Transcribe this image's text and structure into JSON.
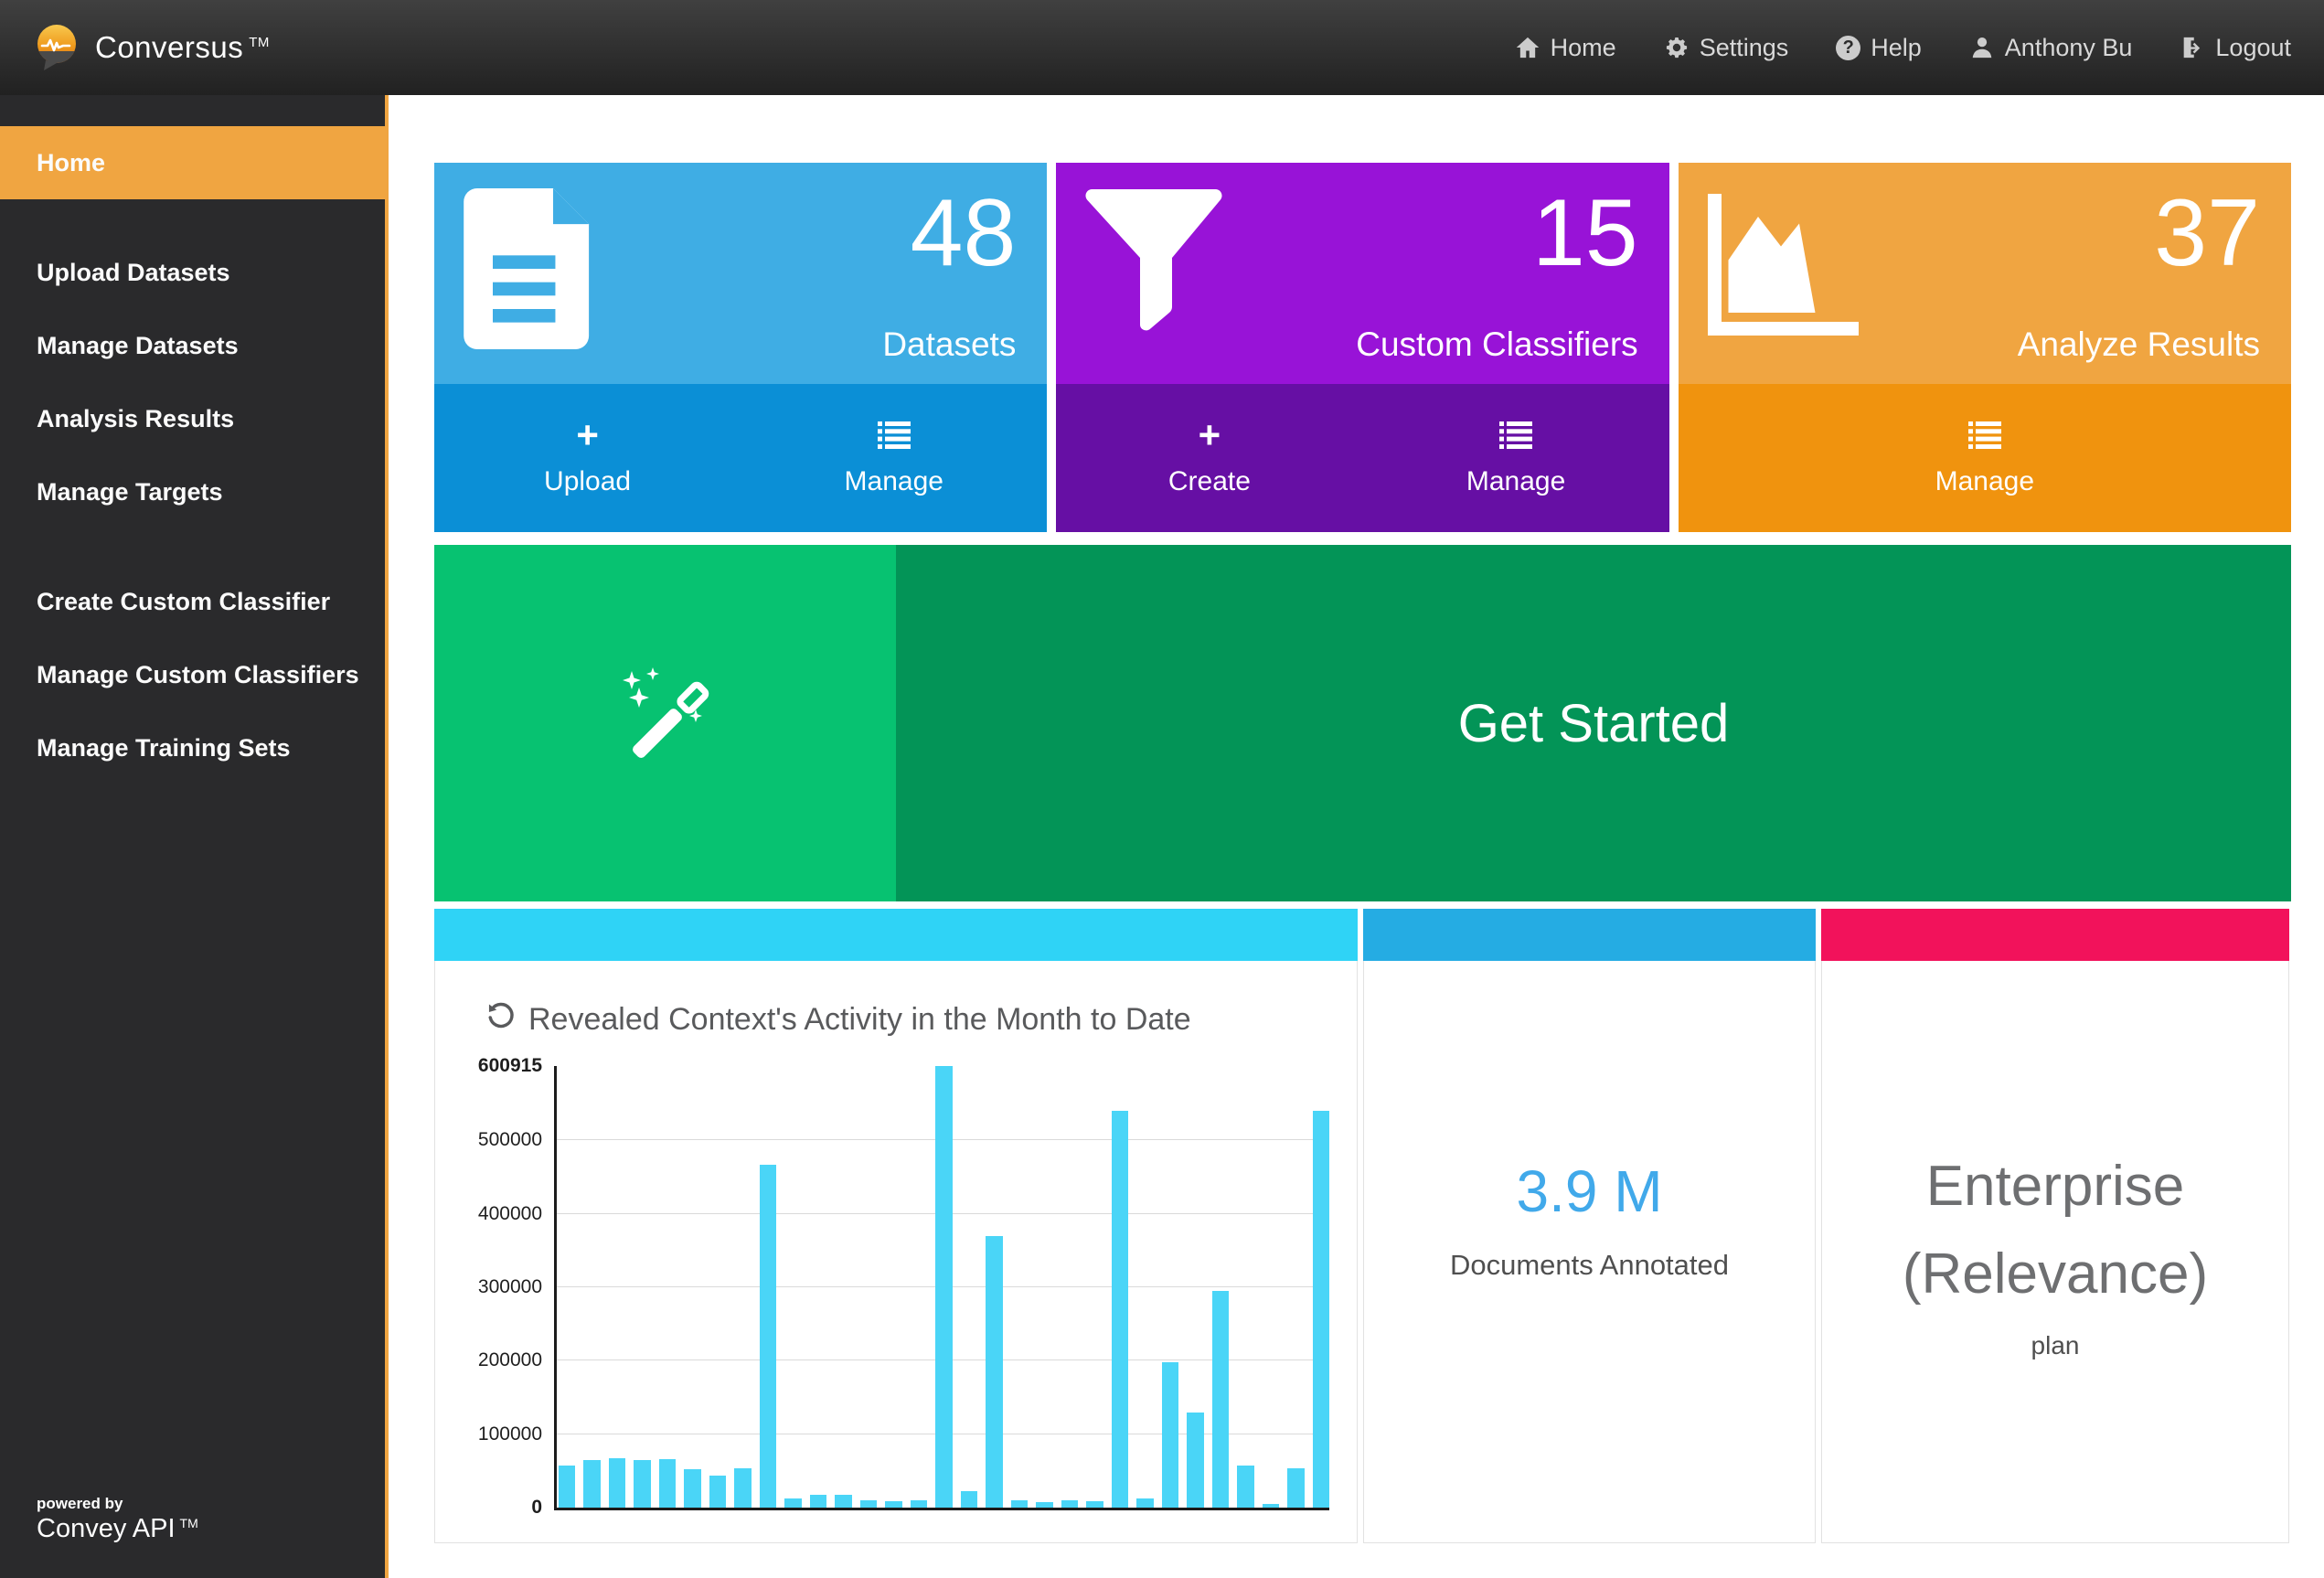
{
  "brand": {
    "name": "Conversus",
    "tm": "TM",
    "logo_icon": "speech-bubble-waveform-logo"
  },
  "topnav": {
    "items": [
      {
        "label": "Home",
        "icon": "home-icon"
      },
      {
        "label": "Settings",
        "icon": "gear-icon"
      },
      {
        "label": "Help",
        "icon": "help-icon",
        "help_glyph": "?"
      },
      {
        "label": "Anthony Bu",
        "icon": "user-icon"
      },
      {
        "label": "Logout",
        "icon": "logout-icon"
      }
    ]
  },
  "sidebar": {
    "items": [
      {
        "label": "Home",
        "active": true
      },
      {
        "label": "Upload Datasets"
      },
      {
        "label": "Manage Datasets"
      },
      {
        "label": "Analysis Results"
      },
      {
        "label": "Manage Targets"
      },
      {
        "label": "Create Custom Classifier"
      },
      {
        "label": "Manage Custom Classifiers"
      },
      {
        "label": "Manage Training Sets"
      }
    ],
    "footer": {
      "powered_by": "powered by",
      "brand": "Convey API",
      "tm": "TM"
    },
    "accent_color": "#f0a541"
  },
  "cards": [
    {
      "value": "48",
      "label": "Datasets",
      "icon": "document-icon",
      "top_color": "#3fade4",
      "bottom_color": "#0b8fd6",
      "actions": [
        {
          "label": "Upload",
          "icon": "plus-icon"
        },
        {
          "label": "Manage",
          "icon": "list-icon"
        }
      ]
    },
    {
      "value": "15",
      "label": "Custom Classifiers",
      "icon": "filter-icon",
      "top_color": "#9813d7",
      "bottom_color": "#660fa4",
      "actions": [
        {
          "label": "Create",
          "icon": "plus-icon"
        },
        {
          "label": "Manage",
          "icon": "list-icon"
        }
      ]
    },
    {
      "value": "37",
      "label": "Analyze Results",
      "icon": "area-chart-icon",
      "top_color": "#f0a541",
      "bottom_color": "#f0930e",
      "actions": [
        {
          "label": "Manage",
          "icon": "list-icon"
        }
      ]
    }
  ],
  "banner": {
    "label": "Get Started",
    "icon": "magic-wand-icon",
    "left_color": "#07c271",
    "right_color": "#039457"
  },
  "chart_data": {
    "type": "bar",
    "title": "Revealed Context's Activity in the Month to Date",
    "title_icon": "history-icon",
    "bar_color": "#4ad5f7",
    "ylim": [
      0,
      600915
    ],
    "grid": true,
    "x_tick_labels": [],
    "xlabel": "",
    "ylabel": "",
    "yticks": [
      {
        "label": "600915",
        "value": 600915,
        "bold": true
      },
      {
        "label": "500000",
        "value": 500000,
        "bold": false
      },
      {
        "label": "400000",
        "value": 400000,
        "bold": false
      },
      {
        "label": "300000",
        "value": 300000,
        "bold": false
      },
      {
        "label": "200000",
        "value": 200000,
        "bold": false
      },
      {
        "label": "100000",
        "value": 100000,
        "bold": false
      },
      {
        "label": "0",
        "value": 0,
        "bold": true
      }
    ],
    "values": [
      57000,
      65000,
      67000,
      65000,
      66000,
      52000,
      44000,
      53000,
      467000,
      13000,
      17000,
      17000,
      10000,
      9000,
      10000,
      600915,
      22000,
      370000,
      10000,
      8000,
      10000,
      9000,
      540000,
      13000,
      198000,
      130000,
      295000,
      57000,
      5000,
      53000,
      540000
    ]
  },
  "stats": {
    "annotated": {
      "value": "3.9 M",
      "label": "Documents Annotated",
      "accent": "#41a9ea",
      "strip_color": "#25ace3"
    },
    "plan": {
      "line1": "Enterprise",
      "line2": "(Relevance)",
      "subtitle": "plan",
      "strip_color": "#f2125b"
    }
  }
}
